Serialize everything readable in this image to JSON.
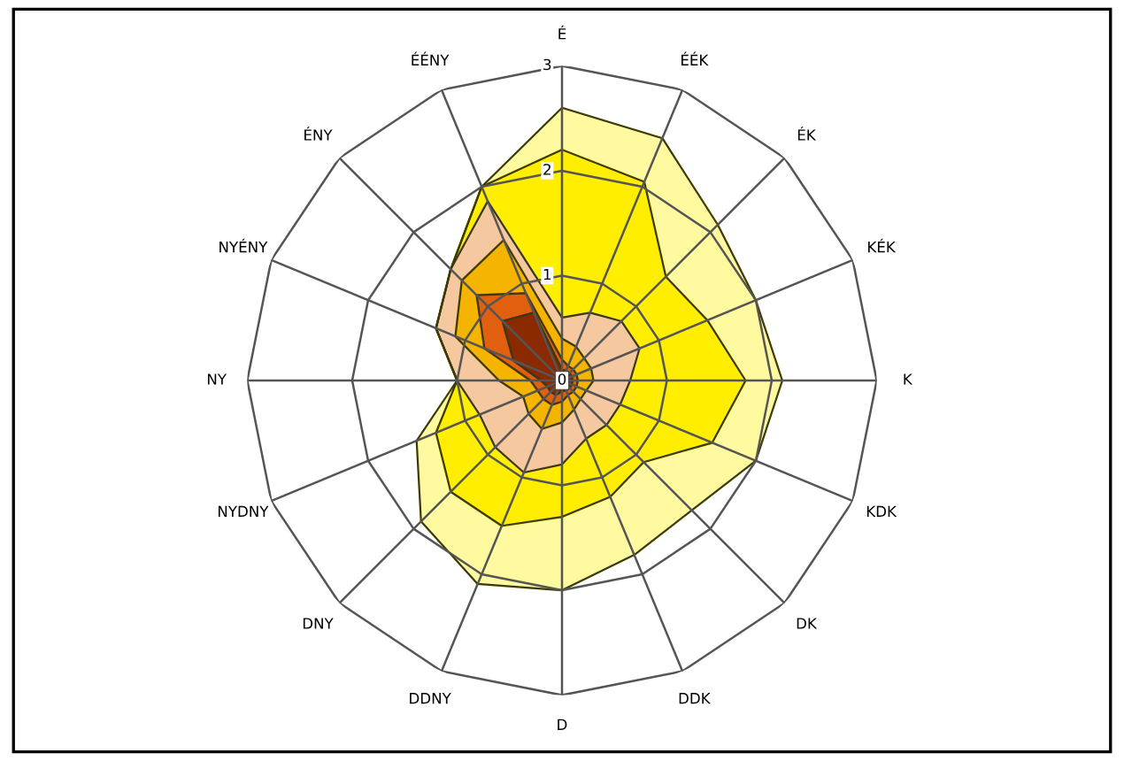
{
  "chart_data": {
    "type": "radar",
    "categories": [
      "É",
      "ÉÉK",
      "ÉK",
      "KÉK",
      "K",
      "KDK",
      "DK",
      "DDK",
      "D",
      "DDNY",
      "DNY",
      "NYDNY",
      "NY",
      "NYÉNY",
      "ÉNY",
      "ÉÉNY"
    ],
    "ylim": [
      0,
      3
    ],
    "yticks": [
      0,
      1,
      2,
      3
    ],
    "grid": true,
    "legend": false,
    "series": [
      {
        "color": "#fffaa0",
        "values": [
          2.6,
          2.5,
          2.1,
          2.0,
          2.1,
          2.0,
          1.75,
          1.8,
          2.0,
          2.1,
          1.9,
          1.5,
          1.0,
          1.3,
          1.5,
          2.0
        ]
      },
      {
        "color": "#ffee00",
        "values": [
          2.2,
          2.05,
          1.4,
          1.5,
          1.75,
          1.55,
          1.1,
          1.2,
          1.3,
          1.5,
          1.5,
          1.3,
          1.0,
          1.3,
          1.5,
          2.0
        ]
      },
      {
        "color": "#f5c8a0",
        "values": [
          0.6,
          0.7,
          0.8,
          0.8,
          0.65,
          0.6,
          0.6,
          0.6,
          0.8,
          0.95,
          0.9,
          0.85,
          1.0,
          1.3,
          1.5,
          1.85
        ]
      },
      {
        "color": "#f5b400",
        "values": [
          0.4,
          0.35,
          0.3,
          0.3,
          0.3,
          0.25,
          0.25,
          0.3,
          0.4,
          0.5,
          0.45,
          0.4,
          0.6,
          1.1,
          1.35,
          1.45
        ]
      },
      {
        "color": "#e06010",
        "values": [
          0.2,
          0.15,
          0.15,
          0.15,
          0.15,
          0.15,
          0.15,
          0.15,
          0.2,
          0.25,
          0.25,
          0.25,
          0.3,
          0.8,
          1.15,
          0.9
        ]
      },
      {
        "color": "#8b2a00",
        "values": [
          0.1,
          0.1,
          0.1,
          0.1,
          0.1,
          0.1,
          0.1,
          0.1,
          0.1,
          0.15,
          0.15,
          0.15,
          0.2,
          0.5,
          0.8,
          0.7
        ]
      }
    ]
  }
}
